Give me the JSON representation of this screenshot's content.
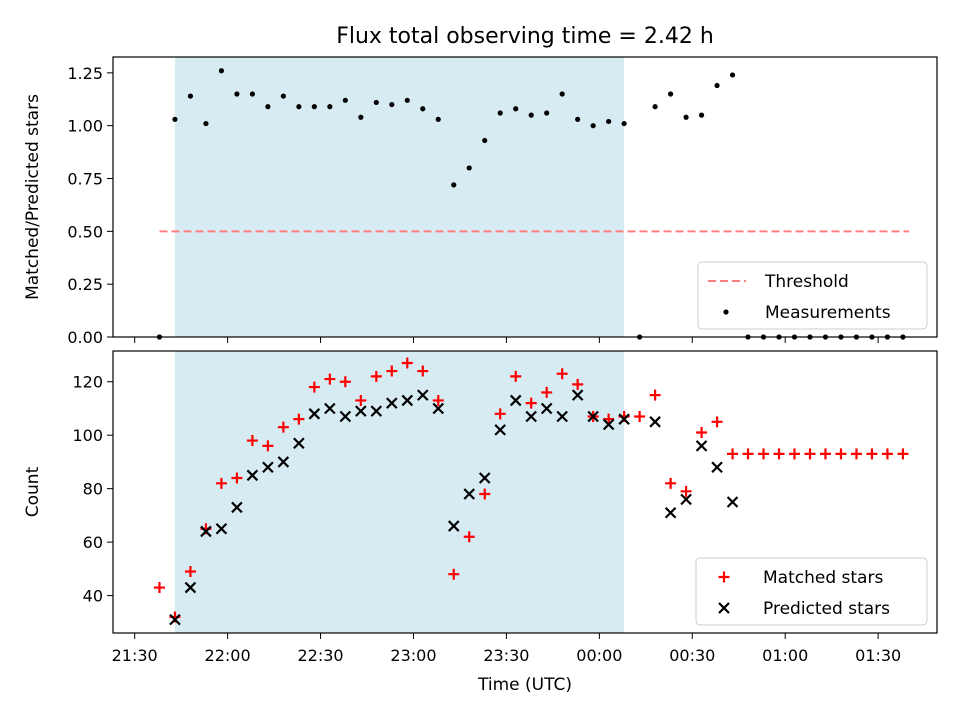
{
  "figure": {
    "title": "Flux total observing time = 2.42 h",
    "xlabel": "Time (UTC)",
    "x_tick_labels": [
      "21:30",
      "22:00",
      "22:30",
      "23:00",
      "23:30",
      "00:00",
      "00:30",
      "01:00",
      "01:30"
    ]
  },
  "colors": {
    "span": "#add8e6",
    "threshold": "#ff7f7f",
    "measurements": "#000000",
    "matched": "#ff0000",
    "predicted": "#000000"
  },
  "chart_data": [
    {
      "type": "scatter",
      "ylabel": "Matched/Predicted stars",
      "ylim": [
        0.0,
        1.325
      ],
      "y_ticks": [
        "0.00",
        "0.25",
        "0.50",
        "0.75",
        "1.00",
        "1.25"
      ],
      "x_range": [
        "21:23",
        "01:49"
      ],
      "shaded_span": [
        "21:43",
        "00:08"
      ],
      "threshold": {
        "label": "Threshold",
        "y": 0.5,
        "x_range": [
          "21:38",
          "01:40"
        ]
      },
      "legend_position": "lower-right",
      "series": [
        {
          "name": "Measurements",
          "x": [
            "21:38",
            "21:43",
            "21:48",
            "21:53",
            "21:58",
            "22:03",
            "22:08",
            "22:13",
            "22:18",
            "22:23",
            "22:28",
            "22:33",
            "22:38",
            "22:43",
            "22:48",
            "22:53",
            "22:58",
            "23:03",
            "23:08",
            "23:13",
            "23:18",
            "23:23",
            "23:28",
            "23:33",
            "23:38",
            "23:43",
            "23:48",
            "23:53",
            "23:58",
            "00:03",
            "00:08",
            "00:13",
            "00:18",
            "00:23",
            "00:28",
            "00:33",
            "00:38",
            "00:43",
            "00:48",
            "00:53",
            "00:58",
            "01:03",
            "01:08",
            "01:13",
            "01:18",
            "01:23",
            "01:28",
            "01:33",
            "01:38"
          ],
          "y": [
            0.0,
            1.03,
            1.14,
            1.01,
            1.26,
            1.15,
            1.15,
            1.09,
            1.14,
            1.09,
            1.09,
            1.09,
            1.12,
            1.04,
            1.11,
            1.1,
            1.12,
            1.08,
            1.03,
            0.72,
            0.8,
            0.93,
            1.06,
            1.08,
            1.05,
            1.06,
            1.15,
            1.03,
            1.0,
            1.02,
            1.01,
            0.0,
            1.09,
            1.15,
            1.04,
            1.05,
            1.19,
            1.24,
            0.0,
            0.0,
            0.0,
            0.0,
            0.0,
            0.0,
            0.0,
            0.0,
            0.0,
            0.0,
            0.0
          ]
        }
      ]
    },
    {
      "type": "scatter",
      "ylabel": "Count",
      "ylim": [
        26,
        131.5
      ],
      "y_ticks": [
        "40",
        "60",
        "80",
        "100",
        "120"
      ],
      "x_range": [
        "21:23",
        "01:49"
      ],
      "shaded_span": [
        "21:43",
        "00:08"
      ],
      "legend_position": "lower-right",
      "series": [
        {
          "name": "Matched stars",
          "marker": "plus",
          "x": [
            "21:38",
            "21:43",
            "21:48",
            "21:53",
            "21:58",
            "22:03",
            "22:08",
            "22:13",
            "22:18",
            "22:23",
            "22:28",
            "22:33",
            "22:38",
            "22:43",
            "22:48",
            "22:53",
            "22:58",
            "23:03",
            "23:08",
            "23:13",
            "23:18",
            "23:23",
            "23:28",
            "23:33",
            "23:38",
            "23:43",
            "23:48",
            "23:53",
            "23:58",
            "00:03",
            "00:08",
            "00:13",
            "00:18",
            "00:23",
            "00:28",
            "00:33",
            "00:38",
            "00:43",
            "00:48",
            "00:53",
            "00:58",
            "01:03",
            "01:08",
            "01:13",
            "01:18",
            "01:23",
            "01:28",
            "01:33",
            "01:38"
          ],
          "y": [
            43,
            32,
            49,
            65,
            82,
            84,
            98,
            96,
            103,
            106,
            118,
            121,
            120,
            113,
            122,
            124,
            127,
            124,
            113,
            48,
            62,
            78,
            108,
            122,
            112,
            116,
            123,
            119,
            107,
            106,
            107,
            107,
            115,
            82,
            79,
            101,
            105,
            93,
            93,
            93,
            93,
            93,
            93,
            93,
            93,
            93,
            93,
            93,
            93
          ]
        },
        {
          "name": "Predicted stars",
          "marker": "x",
          "x": [
            "21:43",
            "21:48",
            "21:53",
            "21:58",
            "22:03",
            "22:08",
            "22:13",
            "22:18",
            "22:23",
            "22:28",
            "22:33",
            "22:38",
            "22:43",
            "22:48",
            "22:53",
            "22:58",
            "23:03",
            "23:08",
            "23:13",
            "23:18",
            "23:23",
            "23:28",
            "23:33",
            "23:38",
            "23:43",
            "23:48",
            "23:53",
            "23:58",
            "00:03",
            "00:08",
            "00:18",
            "00:23",
            "00:28",
            "00:33",
            "00:38",
            "00:43"
          ],
          "y": [
            31,
            43,
            64,
            65,
            73,
            85,
            88,
            90,
            97,
            108,
            110,
            107,
            109,
            109,
            112,
            113,
            115,
            110,
            66,
            78,
            84,
            102,
            113,
            107,
            110,
            107,
            115,
            107,
            104,
            106,
            105,
            71,
            76,
            96,
            88,
            75
          ]
        }
      ]
    }
  ]
}
